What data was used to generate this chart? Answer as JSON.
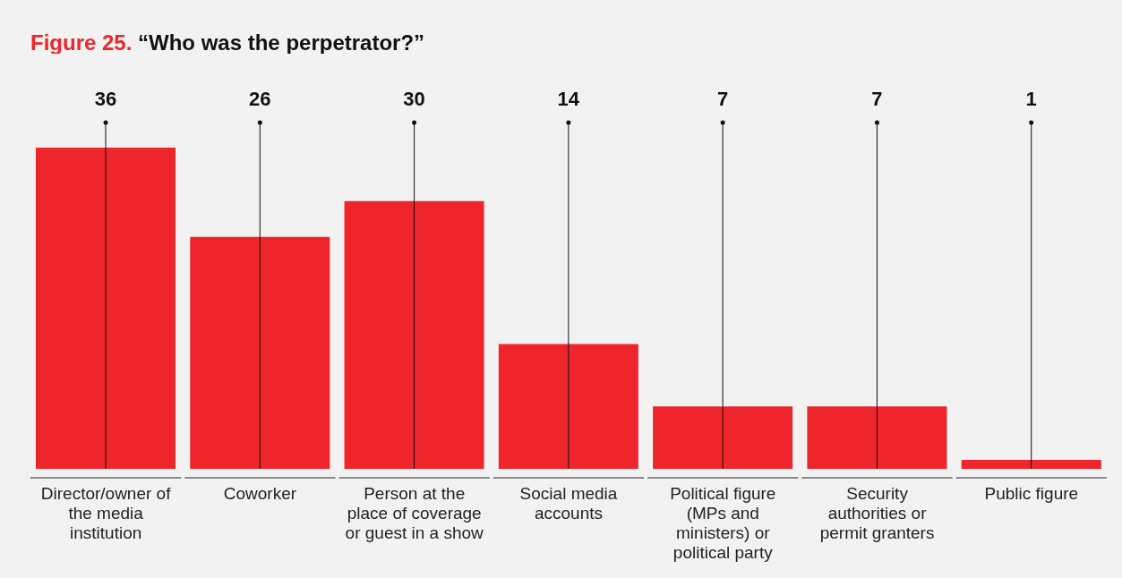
{
  "chart_data": {
    "type": "bar",
    "title": "Figure 25. “Who was the perpetrator?”",
    "categories": [
      "Director/owner of the media institution",
      "Coworker",
      "Person at the place of coverage or guest in a show",
      "Social media accounts",
      "Political figure (MPs and ministers) or political party",
      "Security authorities or permit granters",
      "Public figure"
    ],
    "values": [
      36,
      26,
      30,
      14,
      7,
      7,
      1
    ],
    "color": "#ee262b",
    "data_labels": true,
    "grid": "x",
    "legend": false
  }
}
